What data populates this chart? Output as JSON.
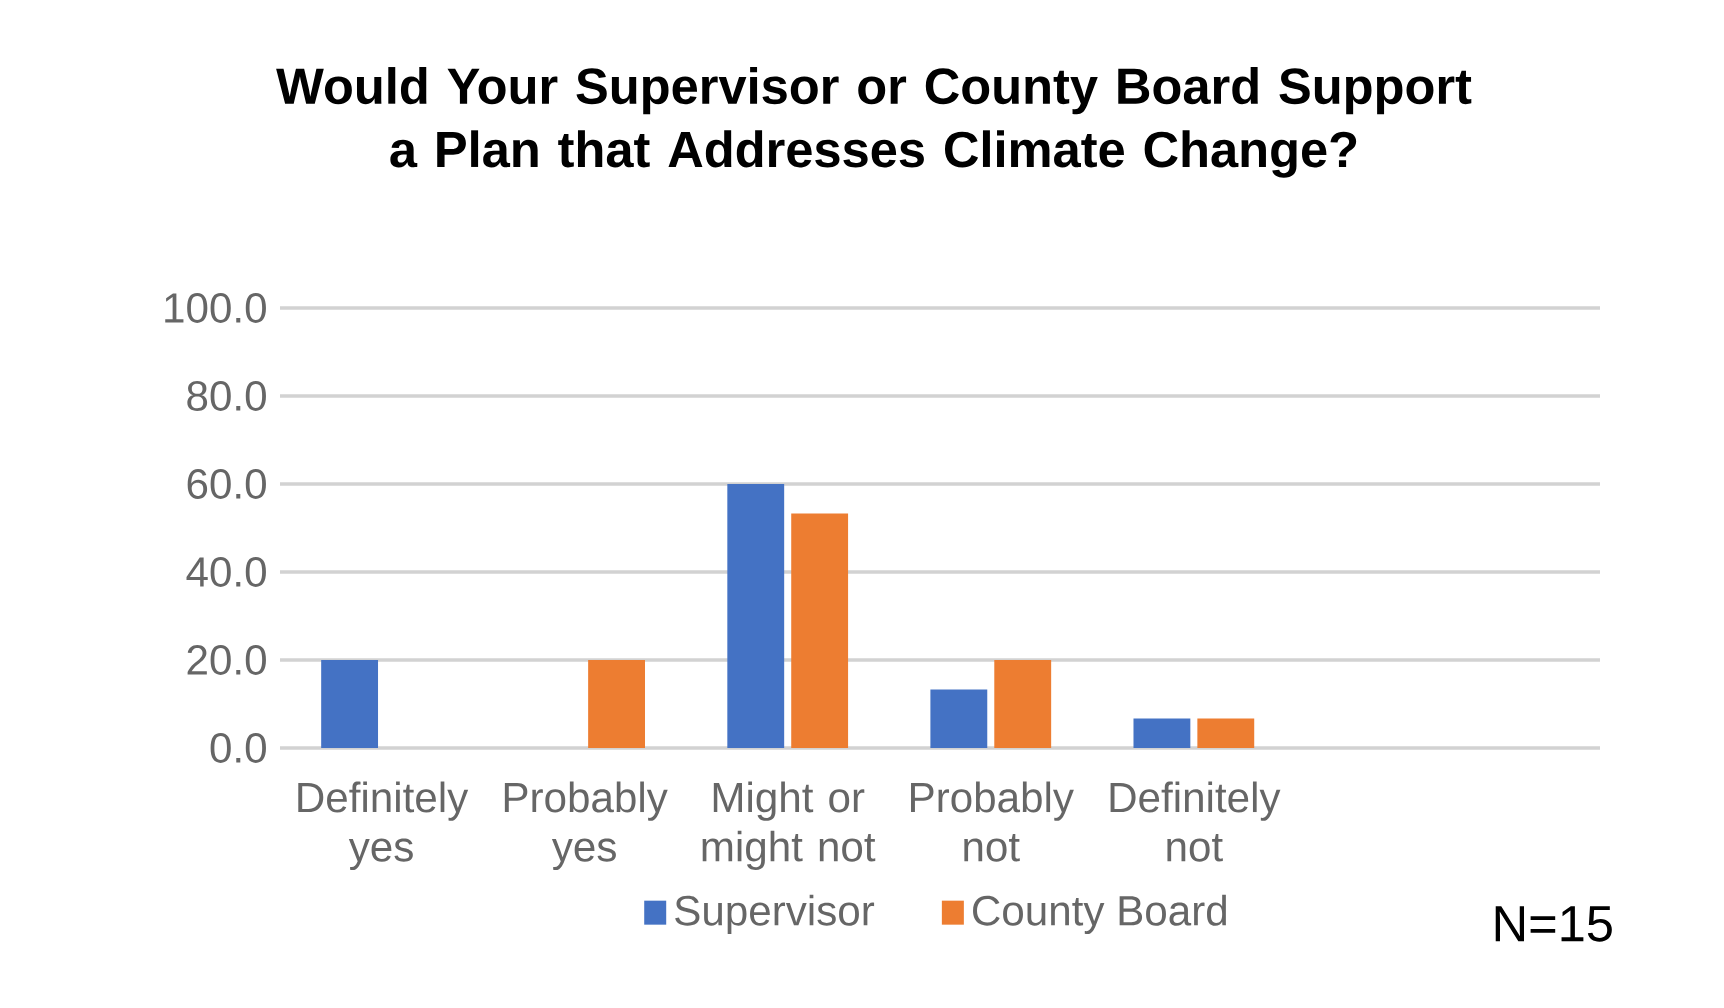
{
  "chart_data": {
    "type": "bar",
    "title": "Would Your Supervisor or County Board Support a Plan that Addresses Climate Change?",
    "categories": [
      "Definitely yes",
      "Probably yes",
      "Might or might not",
      "Probably not",
      "Definitely not"
    ],
    "series": [
      {
        "name": "Supervisor",
        "color": "#4472c4",
        "values": [
          20.0,
          0.0,
          60.0,
          13.3,
          6.7
        ]
      },
      {
        "name": "County Board",
        "color": "#ed7d31",
        "values": [
          0.0,
          20.0,
          53.3,
          20.0,
          6.7
        ]
      }
    ],
    "ylim": [
      0,
      100
    ],
    "yticks": [
      {
        "value": 0,
        "label": "0.0"
      },
      {
        "value": 20,
        "label": "20.0"
      },
      {
        "value": 40,
        "label": "40.0"
      },
      {
        "value": 60,
        "label": "60.0"
      },
      {
        "value": 80,
        "label": "80.0"
      },
      {
        "value": 100,
        "label": "100.0"
      }
    ],
    "grid": "y",
    "legend": "bottom",
    "annotations": [
      "N=15"
    ]
  }
}
